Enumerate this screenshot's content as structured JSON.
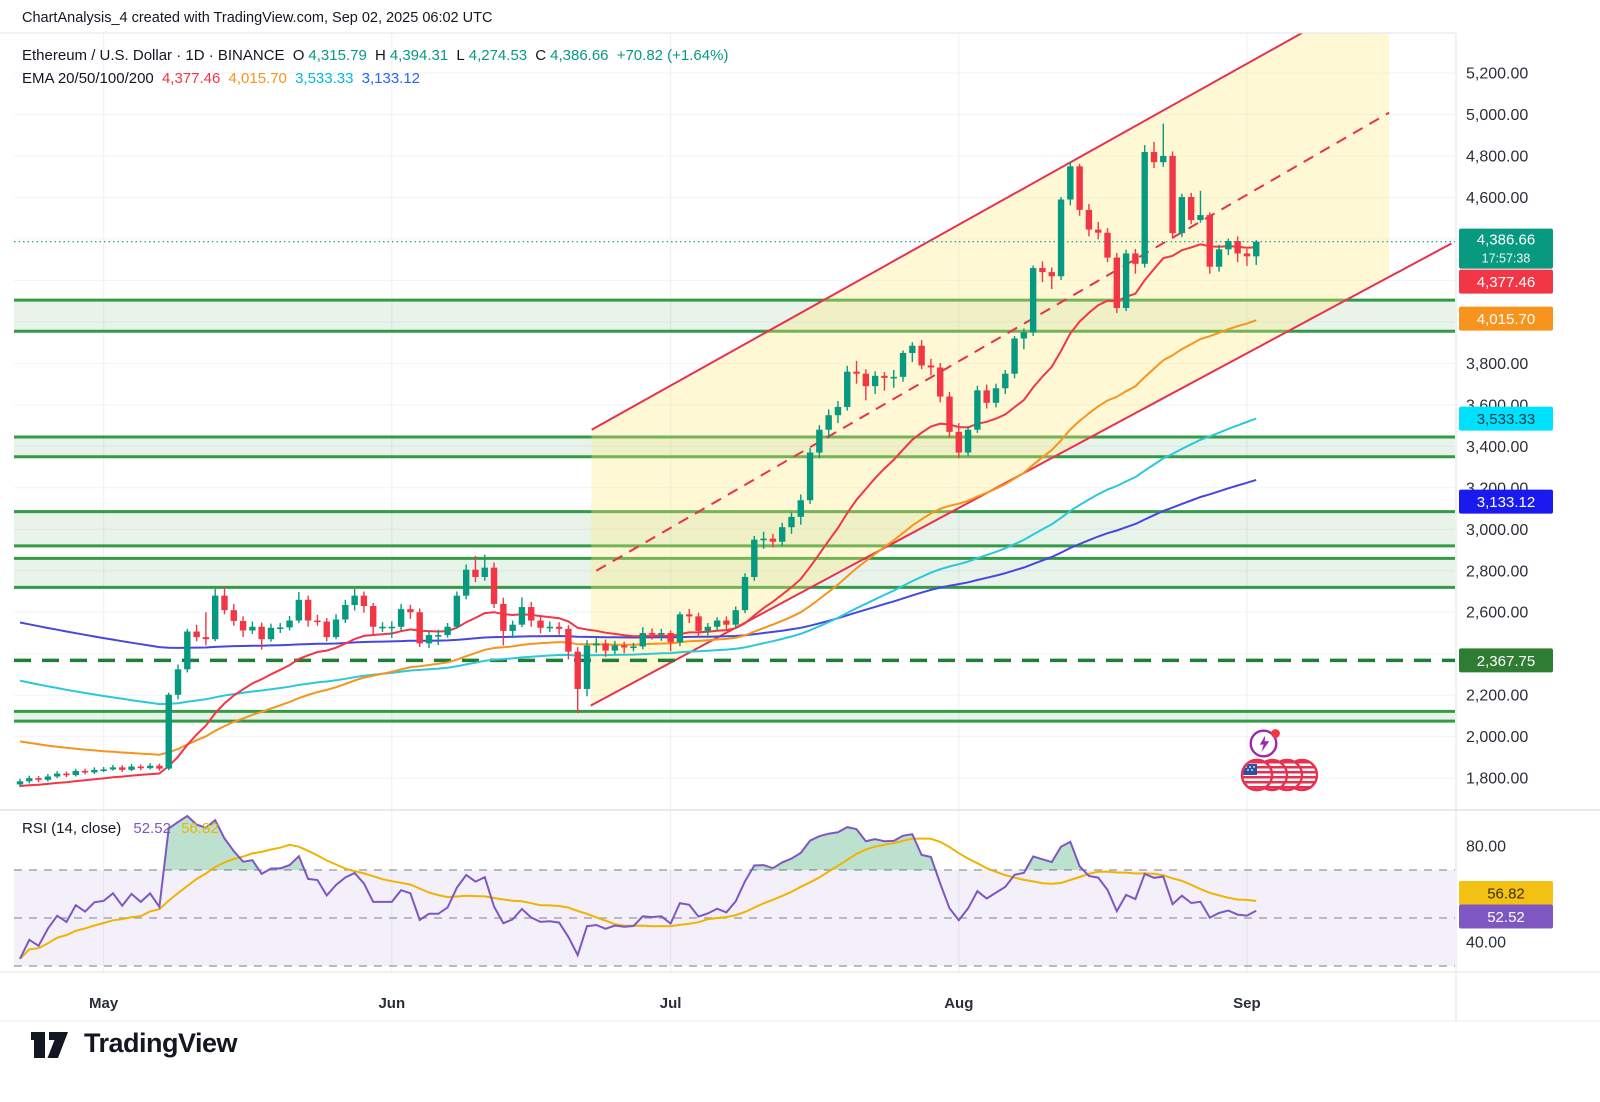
{
  "header": {
    "title_line": "ChartAnalysis_4 created with TradingView.com, Sep 02, 2025 06:02 UTC"
  },
  "legend": {
    "symbol_info": "Ethereum / U.S. Dollar · 1D · BINANCE",
    "ohlc": {
      "o_label": "O",
      "o": "4,315.79",
      "h_label": "H",
      "h": "4,394.31",
      "l_label": "L",
      "l": "4,274.53",
      "c_label": "C",
      "c": "4,386.66",
      "change": "+70.82 (+1.64%)"
    },
    "ema_label": "EMA 20/50/100/200",
    "ema_values": [
      {
        "text": "4,377.46",
        "color": "#f23645"
      },
      {
        "text": "4,015.70",
        "color": "#f7941d"
      },
      {
        "text": "3,533.33",
        "color": "#00bcd4"
      },
      {
        "text": "3,133.12",
        "color": "#2962ff"
      }
    ]
  },
  "price_axis": {
    "visible_labels": [
      {
        "text": "5,200.00",
        "price": 5200
      },
      {
        "text": "5,000.00",
        "price": 5000
      },
      {
        "text": "4,800.00",
        "price": 4800
      },
      {
        "text": "4,600.00",
        "price": 4600
      },
      {
        "text": "3,800.00",
        "price": 3800
      },
      {
        "text": "3,600.00",
        "price": 3600
      },
      {
        "text": "3,400.00",
        "price": 3400
      },
      {
        "text": "3,200.00",
        "price": 3200
      },
      {
        "text": "3,000.00",
        "price": 3000
      },
      {
        "text": "2,800.00",
        "price": 2800
      },
      {
        "text": "2,600.00",
        "price": 2600
      },
      {
        "text": "2,200.00",
        "price": 2200
      },
      {
        "text": "2,000.00",
        "price": 2000
      },
      {
        "text": "1,800.00",
        "price": 1800
      }
    ],
    "badges": [
      {
        "id": "last-price",
        "text": "4,386.66",
        "sub": "17:57:38",
        "bg": "#089981",
        "fg": "#ffffff",
        "price": 4386.66
      },
      {
        "id": "ema20-badge",
        "text": "4,377.46",
        "bg": "#f23645",
        "fg": "#ffffff",
        "price": 4377.46,
        "stack": "below-last"
      },
      {
        "id": "ema50-badge",
        "text": "4,015.70",
        "bg": "#f7941d",
        "fg": "#ffffff",
        "price": 4015.7
      },
      {
        "id": "ema100-badge",
        "text": "3,533.33",
        "bg": "#00e1ff",
        "fg": "#033a46",
        "price": 3533.33
      },
      {
        "id": "ema200-badge",
        "text": "3,133.12",
        "bg": "#1a1af0",
        "fg": "#ffffff",
        "price": 3133.12
      },
      {
        "id": "level-badge",
        "text": "2,367.75",
        "bg": "#2e7d32",
        "fg": "#ffffff",
        "price": 2367.75
      },
      {
        "id": "rsi-ma-badge",
        "text": "56.82",
        "bg": "#f2c113",
        "fg": "#3d3000",
        "rsi": 56.82
      },
      {
        "id": "rsi-badge",
        "text": "52.52",
        "bg": "#7e57c2",
        "fg": "#ffffff",
        "rsi": 52.52
      }
    ],
    "rsi_labels": [
      {
        "text": "80.00",
        "value": 80
      },
      {
        "text": "40.00",
        "value": 40
      }
    ]
  },
  "time_axis": {
    "months": [
      {
        "label": "May",
        "day": 9
      },
      {
        "label": "Jun",
        "day": 40
      },
      {
        "label": "Jul",
        "day": 70
      },
      {
        "label": "Aug",
        "day": 101
      },
      {
        "label": "Sep",
        "day": 132
      }
    ]
  },
  "rsi_panel": {
    "label": "RSI (14, close)",
    "value_1": "52.52",
    "value_2": "56.82",
    "period": 14,
    "source": "close",
    "levels": [
      70,
      50,
      30
    ]
  },
  "watermark": {
    "brand": "TradingView"
  },
  "icons": {
    "event_icon_1": "lightning-circle-icon",
    "event_icon_2": "usd-flag-coins-icon"
  },
  "colors": {
    "up": "#089981",
    "down": "#f23645",
    "ema20": "#f23645",
    "ema50": "#f7941d",
    "ema100": "#2bc8dc",
    "ema200": "#4747e0",
    "zone": "#339b44",
    "zone_fill": "rgba(74,166,85,0.13)",
    "channel": "#e8304f",
    "channel_fill": "rgba(255,233,125,0.32)",
    "rsi_line": "#7e57c2",
    "rsi_ma": "#f0b400",
    "grid": "#f0f3fa",
    "axis_text": "#2a2e39"
  },
  "chart_data": {
    "type": "candlestick",
    "symbol": "ETHUSD",
    "interval": "1D",
    "y_axis_range": [
      1800,
      5200
    ],
    "current_price": {
      "price": 4386.66,
      "countdown": "17:57:38"
    },
    "candles_ohlc_from_apr22_to_sep02": [
      [
        1770,
        1797,
        1757,
        1785
      ],
      [
        1785,
        1812,
        1775,
        1800
      ],
      [
        1800,
        1810,
        1780,
        1792
      ],
      [
        1792,
        1820,
        1784,
        1808
      ],
      [
        1808,
        1834,
        1800,
        1822
      ],
      [
        1822,
        1832,
        1805,
        1815
      ],
      [
        1815,
        1845,
        1808,
        1835
      ],
      [
        1835,
        1846,
        1818,
        1828
      ],
      [
        1828,
        1852,
        1820,
        1840
      ],
      [
        1840,
        1854,
        1830,
        1842
      ],
      [
        1842,
        1864,
        1836,
        1852
      ],
      [
        1852,
        1862,
        1830,
        1840
      ],
      [
        1840,
        1868,
        1834,
        1856
      ],
      [
        1856,
        1866,
        1838,
        1848
      ],
      [
        1848,
        1872,
        1842,
        1860
      ],
      [
        1860,
        1870,
        1836,
        1846
      ],
      [
        1846,
        2212,
        1839,
        2202
      ],
      [
        2202,
        2348,
        2180,
        2325
      ],
      [
        2325,
        2520,
        2310,
        2507
      ],
      [
        2507,
        2540,
        2460,
        2480
      ],
      [
        2480,
        2600,
        2440,
        2470
      ],
      [
        2470,
        2712,
        2460,
        2680
      ],
      [
        2680,
        2722,
        2590,
        2610
      ],
      [
        2610,
        2640,
        2535,
        2558
      ],
      [
        2558,
        2580,
        2480,
        2512
      ],
      [
        2512,
        2555,
        2495,
        2530
      ],
      [
        2530,
        2550,
        2420,
        2470
      ],
      [
        2470,
        2545,
        2458,
        2525
      ],
      [
        2525,
        2548,
        2500,
        2527
      ],
      [
        2527,
        2582,
        2512,
        2560
      ],
      [
        2560,
        2698,
        2548,
        2660
      ],
      [
        2660,
        2680,
        2530,
        2560
      ],
      [
        2560,
        2588,
        2535,
        2555
      ],
      [
        2555,
        2572,
        2460,
        2480
      ],
      [
        2480,
        2590,
        2470,
        2565
      ],
      [
        2565,
        2660,
        2548,
        2635
      ],
      [
        2635,
        2712,
        2608,
        2680
      ],
      [
        2680,
        2700,
        2598,
        2630
      ],
      [
        2630,
        2645,
        2492,
        2530
      ],
      [
        2530,
        2552,
        2505,
        2530
      ],
      [
        2530,
        2556,
        2476,
        2530
      ],
      [
        2530,
        2640,
        2512,
        2615
      ],
      [
        2615,
        2636,
        2568,
        2600
      ],
      [
        2600,
        2618,
        2432,
        2450
      ],
      [
        2450,
        2512,
        2428,
        2490
      ],
      [
        2490,
        2516,
        2442,
        2490
      ],
      [
        2490,
        2548,
        2478,
        2530
      ],
      [
        2530,
        2700,
        2522,
        2680
      ],
      [
        2680,
        2830,
        2662,
        2805
      ],
      [
        2805,
        2872,
        2745,
        2770
      ],
      [
        2770,
        2878,
        2752,
        2815
      ],
      [
        2815,
        2840,
        2620,
        2640
      ],
      [
        2640,
        2670,
        2440,
        2510
      ],
      [
        2510,
        2560,
        2475,
        2540
      ],
      [
        2540,
        2672,
        2528,
        2625
      ],
      [
        2625,
        2650,
        2530,
        2560
      ],
      [
        2560,
        2586,
        2498,
        2525
      ],
      [
        2525,
        2556,
        2505,
        2530
      ],
      [
        2530,
        2552,
        2492,
        2520
      ],
      [
        2520,
        2538,
        2372,
        2410
      ],
      [
        2410,
        2432,
        2113,
        2230
      ],
      [
        2230,
        2465,
        2195,
        2440
      ],
      [
        2440,
        2475,
        2405,
        2450
      ],
      [
        2450,
        2468,
        2385,
        2415
      ],
      [
        2415,
        2462,
        2398,
        2440
      ],
      [
        2440,
        2458,
        2402,
        2430
      ],
      [
        2430,
        2452,
        2412,
        2435
      ],
      [
        2435,
        2528,
        2422,
        2500
      ],
      [
        2500,
        2522,
        2468,
        2495
      ],
      [
        2495,
        2520,
        2462,
        2500
      ],
      [
        2500,
        2512,
        2412,
        2455
      ],
      [
        2455,
        2602,
        2436,
        2590
      ],
      [
        2590,
        2616,
        2548,
        2580
      ],
      [
        2580,
        2598,
        2482,
        2510
      ],
      [
        2510,
        2548,
        2488,
        2530
      ],
      [
        2530,
        2576,
        2512,
        2560
      ],
      [
        2560,
        2580,
        2512,
        2540
      ],
      [
        2540,
        2628,
        2522,
        2610
      ],
      [
        2610,
        2788,
        2596,
        2770
      ],
      [
        2770,
        2968,
        2752,
        2950
      ],
      [
        2950,
        2988,
        2906,
        2955
      ],
      [
        2955,
        2978,
        2912,
        2940
      ],
      [
        2940,
        3032,
        2918,
        3010
      ],
      [
        3010,
        3082,
        2978,
        3060
      ],
      [
        3060,
        3168,
        3022,
        3140
      ],
      [
        3140,
        3392,
        3122,
        3370
      ],
      [
        3370,
        3502,
        3342,
        3480
      ],
      [
        3480,
        3578,
        3438,
        3550
      ],
      [
        3550,
        3618,
        3512,
        3590
      ],
      [
        3590,
        3788,
        3572,
        3760
      ],
      [
        3760,
        3812,
        3702,
        3750
      ],
      [
        3750,
        3772,
        3622,
        3690
      ],
      [
        3690,
        3762,
        3652,
        3740
      ],
      [
        3740,
        3758,
        3668,
        3730
      ],
      [
        3730,
        3768,
        3682,
        3735
      ],
      [
        3735,
        3862,
        3712,
        3850
      ],
      [
        3850,
        3902,
        3806,
        3885
      ],
      [
        3885,
        3912,
        3772,
        3790
      ],
      [
        3790,
        3822,
        3742,
        3780
      ],
      [
        3780,
        3802,
        3612,
        3640
      ],
      [
        3640,
        3662,
        3442,
        3470
      ],
      [
        3470,
        3512,
        3342,
        3370
      ],
      [
        3370,
        3498,
        3352,
        3480
      ],
      [
        3480,
        3692,
        3465,
        3670
      ],
      [
        3670,
        3698,
        3582,
        3610
      ],
      [
        3610,
        3702,
        3588,
        3680
      ],
      [
        3680,
        3768,
        3652,
        3750
      ],
      [
        3750,
        3932,
        3728,
        3920
      ],
      [
        3920,
        3968,
        3868,
        3950
      ],
      [
        3950,
        4272,
        3932,
        4260
      ],
      [
        4260,
        4292,
        4192,
        4240
      ],
      [
        4240,
        4262,
        4158,
        4220
      ],
      [
        4220,
        4602,
        4202,
        4590
      ],
      [
        4590,
        4772,
        4562,
        4750
      ],
      [
        4750,
        4762,
        4512,
        4540
      ],
      [
        4540,
        4568,
        4412,
        4445
      ],
      [
        4445,
        4482,
        4398,
        4430
      ],
      [
        4430,
        4452,
        4288,
        4310
      ],
      [
        4310,
        4332,
        4043,
        4067
      ],
      [
        4067,
        4348,
        4052,
        4330
      ],
      [
        4330,
        4352,
        4232,
        4280
      ],
      [
        4280,
        4852,
        4262,
        4819
      ],
      [
        4819,
        4868,
        4742,
        4770
      ],
      [
        4770,
        4956,
        4748,
        4800
      ],
      [
        4800,
        4822,
        4402,
        4428
      ],
      [
        4428,
        4618,
        4408,
        4602
      ],
      [
        4602,
        4622,
        4472,
        4491
      ],
      [
        4491,
        4632,
        4478,
        4515
      ],
      [
        4515,
        4528,
        4232,
        4266
      ],
      [
        4266,
        4372,
        4242,
        4350
      ],
      [
        4350,
        4402,
        4322,
        4390
      ],
      [
        4390,
        4412,
        4288,
        4330
      ],
      [
        4330,
        4352,
        4270,
        4316
      ],
      [
        4315.79,
        4394.31,
        4274.53,
        4386.66
      ]
    ],
    "support_resistance_zones": [
      {
        "from": 3955,
        "to": 4105
      },
      {
        "from": 3350,
        "to": 3445
      },
      {
        "from": 2920,
        "to": 3085
      },
      {
        "from": 2720,
        "to": 2860
      },
      {
        "from": 2075,
        "to": 2122
      }
    ],
    "dashed_level": {
      "price": 2367.75
    },
    "ascending_channel": {
      "upper": {
        "d1": 61.5,
        "p1": 3480,
        "d2": 140,
        "p2": 5445
      },
      "mid": {
        "d1": 62,
        "p1": 2800,
        "d2": 147.3,
        "p2": 5009
      },
      "lower": {
        "d1": 61.4,
        "p1": 2150,
        "d2": 154,
        "p2": 4378
      },
      "fill_right_day": 147.3
    },
    "emas": [
      {
        "period": 200,
        "alpha": 0.012,
        "seed": 2560,
        "color": "#4747e0"
      },
      {
        "period": 100,
        "alpha": 0.0198,
        "seed": 2280,
        "color": "#2bc8dc"
      },
      {
        "period": 50,
        "alpha": 0.0392,
        "seed": 1985,
        "color": "#f7941d"
      },
      {
        "period": 20,
        "alpha": 0.0952,
        "seed": 1760,
        "color": "#f23645"
      }
    ],
    "rsi": {
      "period": 14,
      "current": 52.52,
      "ma_current": 56.82,
      "overbought": 70,
      "middle": 50,
      "oversold": 30
    }
  }
}
